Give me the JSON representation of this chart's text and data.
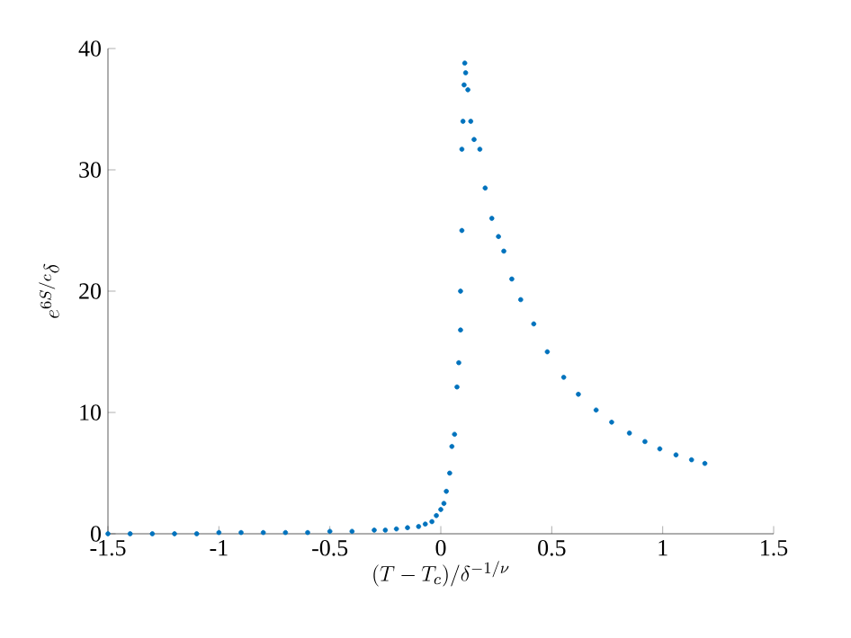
{
  "chart_data": {
    "type": "scatter",
    "xlabel": "(T-T_c)/\\delta^{-1/\\nu}",
    "ylabel": "e^{6S/c}\\delta",
    "x": [
      -1.5,
      -1.4,
      -1.3,
      -1.2,
      -1.1,
      -1.0,
      -0.9,
      -0.8,
      -0.7,
      -0.6,
      -0.5,
      -0.4,
      -0.3,
      -0.25,
      -0.2,
      -0.15,
      -0.1,
      -0.07,
      -0.04,
      -0.02,
      0.0,
      0.014,
      0.025,
      0.04,
      0.05,
      0.062,
      0.073,
      0.081,
      0.089,
      0.089,
      0.095,
      0.095,
      0.1,
      0.105,
      0.108,
      0.112,
      0.122,
      0.135,
      0.15,
      0.176,
      0.2,
      0.23,
      0.26,
      0.284,
      0.32,
      0.36,
      0.419,
      0.48,
      0.554,
      0.62,
      0.7,
      0.77,
      0.85,
      0.92,
      0.987,
      1.06,
      1.13,
      1.19
    ],
    "values": [
      0,
      0,
      0,
      0,
      0,
      0.1,
      0.1,
      0.1,
      0.1,
      0.1,
      0.2,
      0.2,
      0.3,
      0.3,
      0.4,
      0.5,
      0.6,
      0.8,
      1.0,
      1.5,
      2.0,
      2.5,
      3.5,
      5.0,
      7.2,
      8.2,
      12.1,
      14.1,
      16.8,
      20.0,
      25.0,
      31.7,
      34.0,
      37.0,
      38.8,
      38.0,
      36.6,
      34.0,
      32.5,
      31.7,
      28.5,
      26.0,
      24.5,
      23.3,
      21.0,
      19.3,
      17.3,
      15.0,
      12.9,
      11.5,
      10.2,
      9.2,
      8.3,
      7.6,
      7.0,
      6.5,
      6.1,
      5.8
    ],
    "color": "#0072bd",
    "xlim": [
      -1.5,
      1.5
    ],
    "ylim": [
      0,
      40
    ],
    "xticks": [
      -1.5,
      -1,
      -0.5,
      0,
      0.5,
      1,
      1.5
    ],
    "yticks": [
      0,
      10,
      20,
      30,
      40
    ]
  }
}
